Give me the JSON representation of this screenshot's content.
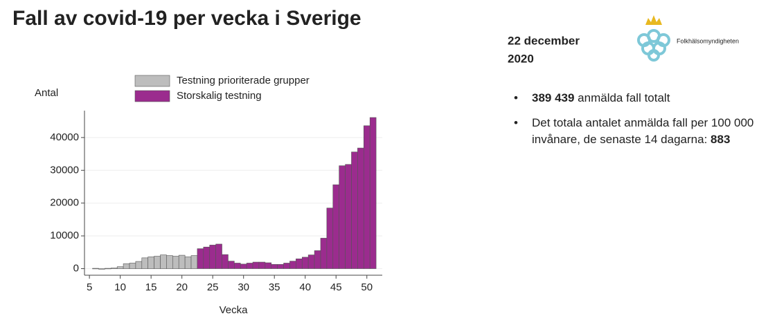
{
  "chart_data": {
    "type": "bar",
    "x": [
      6,
      7,
      8,
      9,
      10,
      11,
      12,
      13,
      14,
      15,
      16,
      17,
      18,
      19,
      20,
      21,
      22,
      23,
      24,
      25,
      26,
      27,
      28,
      29,
      30,
      31,
      32,
      33,
      34,
      35,
      36,
      37,
      38,
      39,
      40,
      41,
      42,
      43,
      44,
      45,
      46,
      47,
      48,
      49,
      50,
      51
    ],
    "series": [
      {
        "name": "Testning prioriterade grupper",
        "color": "#bdbdbd",
        "values": [
          100,
          0,
          100,
          200,
          600,
          1500,
          1700,
          2200,
          3300,
          3600,
          3800,
          4200,
          4000,
          3800,
          4100,
          3600,
          4000,
          null,
          null,
          null,
          null,
          null,
          null,
          null,
          null,
          null,
          null,
          null,
          null,
          null,
          null,
          null,
          null,
          null,
          null,
          null,
          null,
          null,
          null,
          null,
          null,
          null,
          null,
          null,
          null,
          null
        ]
      },
      {
        "name": "Storskalig testning",
        "color": "#9b2c8e",
        "values": [
          null,
          null,
          null,
          null,
          null,
          null,
          null,
          null,
          null,
          null,
          null,
          null,
          null,
          null,
          null,
          null,
          null,
          6100,
          6600,
          7200,
          7500,
          4300,
          2300,
          1700,
          1400,
          1700,
          2000,
          2000,
          1800,
          1300,
          1300,
          1700,
          2300,
          3000,
          3500,
          4200,
          5500,
          9300,
          18500,
          25600,
          31400,
          31800,
          35600,
          36800,
          43600,
          46100
        ]
      }
    ],
    "y_label": "Antal",
    "x_label": "Vecka",
    "xlim": [
      4.2,
      52.5
    ],
    "xticks": [
      5,
      10,
      15,
      20,
      25,
      30,
      35,
      40,
      45,
      50
    ],
    "ylim": [
      -2000,
      48200
    ],
    "yticks": [
      0,
      10000,
      20000,
      30000,
      40000
    ],
    "grid": true
  },
  "slide": {
    "title": "Fall av covid-19 per vecka i Sverige",
    "date": [
      "22 december",
      "2020"
    ],
    "logo_text": "Folkhälsomyndigheten",
    "bullets": [
      {
        "bold": "389 439",
        "text": " anmälda fall totalt"
      },
      {
        "text": "Det totala antalet anmälda fall per 100 000 invånare, de senaste 14 dagarna: ",
        "bold": "883"
      }
    ]
  }
}
